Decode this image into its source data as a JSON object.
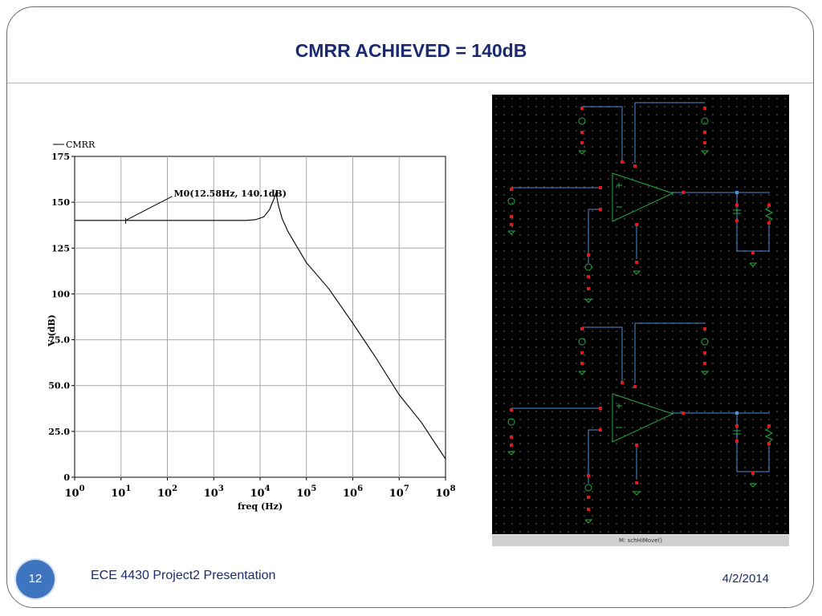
{
  "slide": {
    "title": "CMRR  ACHIEVED = 140dB",
    "page_number": "12",
    "footer_text": "ECE 4430 Project2 Presentation",
    "date": "4/2/2014",
    "title_color": "#1a2a6e",
    "accent_color": "#3f75c0"
  },
  "chart_data": {
    "type": "line",
    "legend": "CMRR",
    "legend_placement": "top-left",
    "xlabel": "freq (Hz)",
    "ylabel": "V (dB)",
    "x_scale": "log",
    "xlim": [
      1,
      100000000
    ],
    "ylim": [
      0,
      175
    ],
    "x_ticks": [
      {
        "base": "10",
        "exp": "0"
      },
      {
        "base": "10",
        "exp": "1"
      },
      {
        "base": "10",
        "exp": "2"
      },
      {
        "base": "10",
        "exp": "3"
      },
      {
        "base": "10",
        "exp": "4"
      },
      {
        "base": "10",
        "exp": "5"
      },
      {
        "base": "10",
        "exp": "6"
      },
      {
        "base": "10",
        "exp": "7"
      },
      {
        "base": "10",
        "exp": "8"
      }
    ],
    "y_ticks": [
      "0",
      "25.0",
      "50.0",
      "75.0",
      "100",
      "125",
      "150",
      "175"
    ],
    "grid": true,
    "series": [
      {
        "name": "CMRR",
        "x": [
          1,
          10,
          100,
          1000,
          5000,
          8000,
          12000,
          16000,
          20000,
          22000,
          25000,
          30000,
          40000,
          100000,
          300000,
          1000000,
          3000000,
          10000000,
          30000000,
          100000000
        ],
        "y": [
          140.1,
          140.1,
          140.1,
          140.1,
          140.1,
          140.5,
          142,
          146,
          152,
          155,
          148,
          141,
          134,
          117,
          103,
          84,
          66,
          45,
          30,
          10
        ]
      }
    ],
    "annotation": {
      "label": "M0(12.58Hz, 140.1dB)",
      "x": 12.58,
      "y": 140.1
    }
  },
  "schematic": {
    "status_text": "M: schHiMove()",
    "wire_color": "#4a90d9",
    "component_color": "#1fae3c",
    "pin_color": "#e01a1a"
  }
}
